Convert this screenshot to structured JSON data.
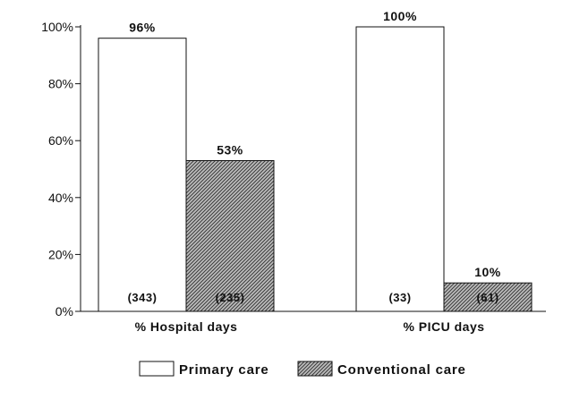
{
  "chart_data": {
    "type": "bar",
    "title": "",
    "xlabel": "",
    "ylabel": "",
    "ylim": [
      0,
      100
    ],
    "y_ticks": [
      "0%",
      "20%",
      "40%",
      "60%",
      "80%",
      "100%"
    ],
    "categories": [
      "% Hospital days",
      "% PICU days"
    ],
    "series": [
      {
        "name": "Primary care",
        "values": [
          96,
          100
        ],
        "value_labels": [
          "96%",
          "100%"
        ],
        "n_labels": [
          "(343)",
          "(33)"
        ],
        "fill": "#ffffff"
      },
      {
        "name": "Conventional care",
        "values": [
          53,
          10
        ],
        "value_labels": [
          "53%",
          "10%"
        ],
        "n_labels": [
          "(235)",
          "(61)"
        ],
        "fill": "hatched"
      }
    ],
    "grid": false,
    "legend_position": "bottom"
  }
}
